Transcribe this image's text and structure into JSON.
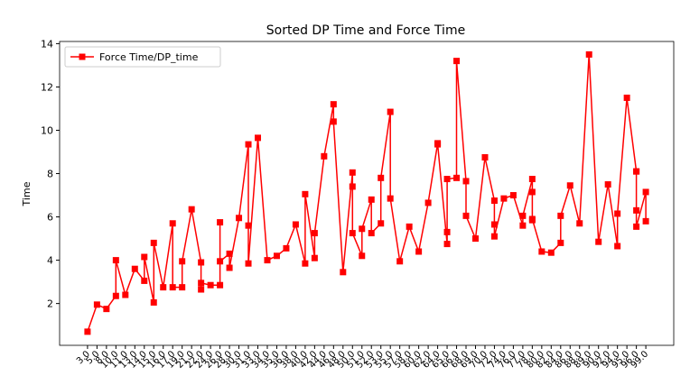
{
  "chart_data": {
    "type": "line",
    "title": "Sorted DP Time and Force Time",
    "ylabel": "Time",
    "categories": [
      "3.0",
      "5.0",
      "8.0",
      "10.0",
      "10.0",
      "11.0",
      "13.0",
      "14.0",
      "14.0",
      "15.0",
      "15.0",
      "16.0",
      "17.0",
      "17.0",
      "19.0",
      "19.0",
      "21.0",
      "22.0",
      "22.0",
      "22.0",
      "24.0",
      "26.0",
      "26.0",
      "26.0",
      "28.0",
      "28.0",
      "30.0",
      "31.0",
      "31.0",
      "31.0",
      "33.0",
      "34.0",
      "35.0",
      "36.0",
      "38.0",
      "40.0",
      "40.0",
      "42.0",
      "42.0",
      "44.0",
      "46.0",
      "46.0",
      "48.0",
      "50.0",
      "50.0",
      "50.0",
      "51.0",
      "51.0",
      "52.0",
      "52.0",
      "53.0",
      "53.0",
      "55.0",
      "55.0",
      "57.0",
      "58.0",
      "60.0",
      "62.0",
      "64.0",
      "64.0",
      "65.0",
      "65.0",
      "65.0",
      "66.0",
      "66.0",
      "68.0",
      "68.0",
      "69.0",
      "70.0",
      "72.0",
      "72.0",
      "72.0",
      "74.0",
      "76.0",
      "77.0",
      "77.0",
      "78.0",
      "78.0",
      "78.0",
      "78.0",
      "80.0",
      "82.0",
      "84.0",
      "84.0",
      "86.0",
      "88.0",
      "89.0",
      "90.0",
      "92.0",
      "94.0",
      "94.0",
      "95.0",
      "96.0",
      "96.0",
      "96.0",
      "96.0",
      "99.0",
      "99.0"
    ],
    "series": [
      {
        "name": "Force Time/DP_time",
        "color": "#ff0000",
        "values": [
          0.7,
          1.95,
          1.75,
          2.35,
          4.0,
          2.4,
          3.6,
          3.05,
          4.15,
          2.05,
          4.8,
          2.75,
          5.7,
          2.75,
          2.75,
          3.95,
          6.35,
          3.9,
          2.65,
          2.95,
          2.85,
          2.85,
          5.75,
          3.95,
          4.3,
          3.65,
          5.95,
          9.35,
          5.6,
          3.85,
          9.65,
          4.0,
          4.2,
          4.55,
          5.65,
          3.85,
          7.05,
          4.1,
          5.25,
          8.8,
          11.2,
          10.4,
          3.45,
          8.05,
          7.4,
          5.25,
          4.2,
          5.45,
          6.8,
          5.25,
          5.7,
          7.8,
          10.85,
          6.85,
          3.95,
          5.55,
          4.4,
          6.65,
          9.4,
          9.35,
          4.75,
          5.3,
          7.75,
          7.8,
          13.2,
          7.65,
          6.05,
          5.0,
          8.75,
          6.75,
          5.65,
          5.1,
          6.85,
          7.0,
          5.6,
          6.05,
          7.75,
          7.15,
          5.85,
          5.9,
          4.4,
          4.35,
          4.8,
          6.05,
          7.45,
          5.7,
          13.5,
          4.85,
          7.5,
          4.65,
          6.15,
          11.5,
          8.1,
          8.1,
          6.3,
          5.55,
          7.15,
          5.8
        ]
      }
    ],
    "ylim": [
      0.07,
      14.1
    ],
    "yticks": [
      2,
      4,
      6,
      8,
      10,
      12,
      14
    ],
    "legend": "upper left",
    "grid": false
  }
}
